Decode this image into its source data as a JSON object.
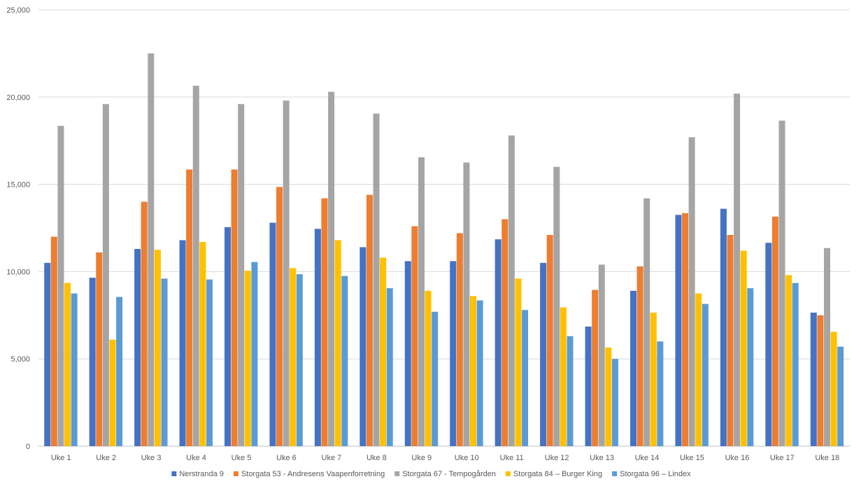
{
  "chart_data": {
    "type": "bar",
    "title": "",
    "xlabel": "",
    "ylabel": "",
    "ylim": [
      0,
      25000
    ],
    "yticks": [
      "0",
      "5,000",
      "10,000",
      "15,000",
      "20,000",
      "25,000"
    ],
    "grid": true,
    "legend_position": "bottom",
    "categories": [
      "Uke 1",
      "Uke 2",
      "Uke 3",
      "Uke 4",
      "Uke 5",
      "Uke 6",
      "Uke 7",
      "Uke 8",
      "Uke 9",
      "Uke 10",
      "Uke 11",
      "Uke 12",
      "Uke 13",
      "Uke 14",
      "Uke 15",
      "Uke 16",
      "Uke 17",
      "Uke 18"
    ],
    "series": [
      {
        "name": "Nerstranda 9",
        "color": "#4472C4",
        "values": [
          10500,
          9650,
          11300,
          11800,
          12550,
          12800,
          12450,
          11400,
          10600,
          10600,
          11850,
          10500,
          6850,
          8900,
          13250,
          13600,
          11650,
          7650
        ]
      },
      {
        "name": "Storgata 53 - Andresens Vaapenforretning",
        "color": "#ED7D31",
        "values": [
          12000,
          11100,
          14000,
          15850,
          15850,
          14850,
          14200,
          14400,
          12600,
          12200,
          13000,
          12100,
          8950,
          10300,
          13350,
          12100,
          13150,
          7500
        ]
      },
      {
        "name": "Storgata 67 - Tempogården",
        "color": "#A5A5A5",
        "values": [
          18350,
          19600,
          22500,
          20650,
          19600,
          19800,
          20300,
          19050,
          16550,
          16250,
          17800,
          16000,
          10400,
          14200,
          17700,
          20200,
          18650,
          11350
        ]
      },
      {
        "name": "Storgata 84 – Burger King",
        "color": "#FFC000",
        "values": [
          9350,
          6100,
          11250,
          11700,
          10050,
          10200,
          11800,
          10800,
          8900,
          8600,
          9600,
          7950,
          5650,
          7650,
          8750,
          11200,
          9800,
          6550
        ]
      },
      {
        "name": "Storgata 96 – Lindex",
        "color": "#5B9BD5",
        "values": [
          8750,
          8550,
          9600,
          9550,
          10550,
          9850,
          9750,
          9050,
          7700,
          8350,
          7800,
          6300,
          5000,
          6000,
          8150,
          9050,
          9350,
          5700
        ]
      }
    ]
  }
}
